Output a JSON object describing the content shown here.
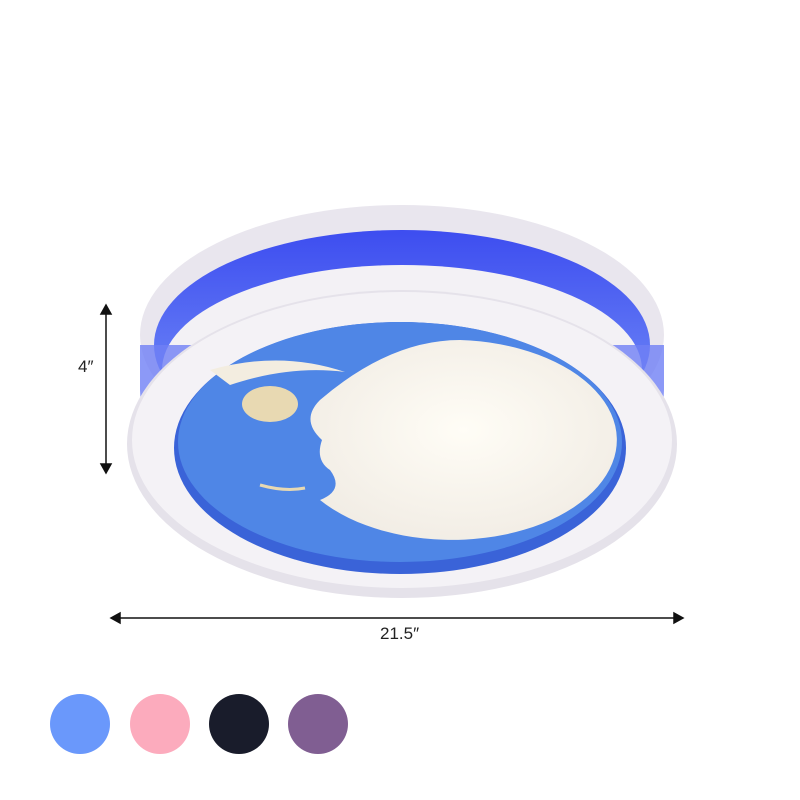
{
  "dimensions": {
    "height_label": "4″",
    "width_label": "21.5″"
  },
  "color_options": [
    {
      "name": "blue",
      "color": "#6a98fb"
    },
    {
      "name": "pink",
      "color": "#fcabbd"
    },
    {
      "name": "black",
      "color": "#191c2b"
    },
    {
      "name": "purple",
      "color": "#805e92"
    }
  ]
}
